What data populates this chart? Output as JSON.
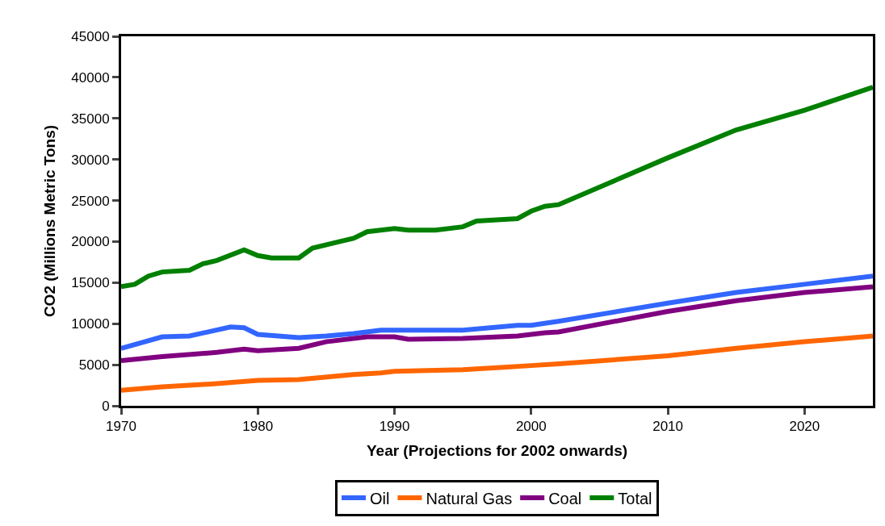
{
  "chart_data": {
    "type": "line",
    "xlabel": "Year (Projections for 2002 onwards)",
    "ylabel": "CO2 (Millions Metric Tons)",
    "xlim": [
      1970,
      2025
    ],
    "xticks": [
      1970,
      1980,
      1990,
      2000,
      2010,
      2020
    ],
    "ylim": [
      0,
      45000
    ],
    "yticks": [
      0,
      5000,
      10000,
      15000,
      20000,
      25000,
      30000,
      35000,
      40000,
      45000
    ],
    "legend": "bottom",
    "marker": "none",
    "line_style": "solid",
    "series": [
      {
        "name": "Oil",
        "color": "#3366ff",
        "x": [
          1970,
          1973,
          1975,
          1978,
          1979,
          1980,
          1983,
          1985,
          1987,
          1989,
          1995,
          1999,
          2000,
          2002,
          2010,
          2015,
          2020,
          2025
        ],
        "values": [
          7000,
          8400,
          8500,
          9600,
          9500,
          8700,
          8300,
          8500,
          8800,
          9200,
          9200,
          9800,
          9800,
          10300,
          12500,
          13800,
          14800,
          15800
        ]
      },
      {
        "name": "Natural Gas",
        "color": "#ff6600",
        "x": [
          1970,
          1973,
          1977,
          1980,
          1983,
          1987,
          1989,
          1990,
          1995,
          1998,
          2000,
          2002,
          2010,
          2015,
          2020,
          2025
        ],
        "values": [
          1900,
          2300,
          2700,
          3100,
          3200,
          3800,
          4000,
          4200,
          4400,
          4700,
          4900,
          5100,
          6100,
          7000,
          7800,
          8500
        ]
      },
      {
        "name": "Coal",
        "color": "#800080",
        "x": [
          1970,
          1973,
          1977,
          1979,
          1980,
          1983,
          1985,
          1988,
          1990,
          1991,
          1995,
          1999,
          2001,
          2002,
          2010,
          2015,
          2020,
          2025
        ],
        "values": [
          5500,
          6000,
          6500,
          6900,
          6700,
          7000,
          7800,
          8400,
          8400,
          8100,
          8200,
          8500,
          8900,
          9000,
          11500,
          12800,
          13800,
          14500
        ]
      },
      {
        "name": "Total",
        "color": "#008000",
        "x": [
          1970,
          1971,
          1972,
          1973,
          1975,
          1976,
          1977,
          1979,
          1980,
          1981,
          1983,
          1984,
          1986,
          1987,
          1988,
          1990,
          1991,
          1993,
          1995,
          1996,
          1998,
          1999,
          2000,
          2001,
          2002,
          2010,
          2015,
          2020,
          2025
        ],
        "values": [
          14500,
          14800,
          15800,
          16300,
          16500,
          17300,
          17700,
          19000,
          18300,
          18000,
          18000,
          19200,
          20000,
          20400,
          21200,
          21600,
          21400,
          21400,
          21800,
          22500,
          22700,
          22800,
          23700,
          24300,
          24500,
          30200,
          33600,
          36000,
          38800
        ]
      }
    ]
  }
}
